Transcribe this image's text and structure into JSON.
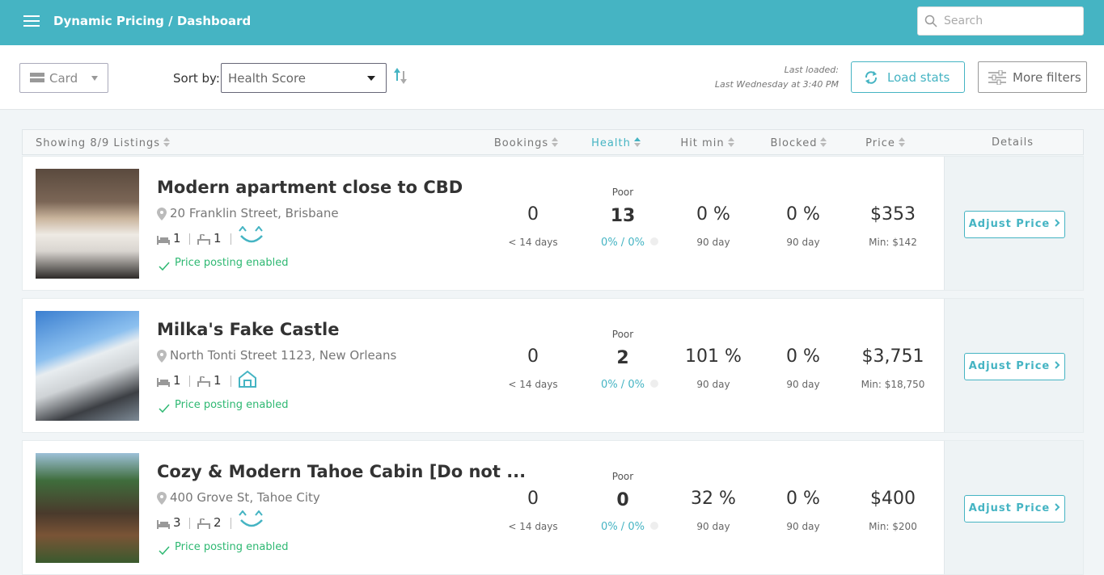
{
  "header": {
    "title": "Dynamic Pricing / Dashboard",
    "search_placeholder": "Search"
  },
  "toolbar": {
    "view": "Card",
    "sort_label": "Sort by:",
    "sort_value": "Health Score",
    "last_loaded_label": "Last loaded:",
    "last_loaded_value": "Last Wednesday at 3:40 PM",
    "load_stats": "Load stats",
    "more_filters": "More filters"
  },
  "table": {
    "columns": [
      "Showing 8/9 Listings",
      "Bookings",
      "Health",
      "Hit min",
      "Blocked",
      "Price",
      "Details"
    ],
    "rows": [
      {
        "title": "Modern apartment close to CBD",
        "address": "20 Franklin Street, Brisbane",
        "beds": "1",
        "baths": "1",
        "status": "Price posting enabled",
        "bookings": "0",
        "bookings_sub": "< 14 days",
        "health_label": "Poor",
        "health": "13",
        "health_sub": "0% / 0%",
        "hit_min": "0 %",
        "hit_min_sub": "90 day",
        "blocked": "0 %",
        "blocked_sub": "90 day",
        "price": "$353",
        "min_price": "Min: $142",
        "action": "Adjust Price"
      },
      {
        "title": "Milka's Fake Castle",
        "address": "North Tonti Street 1123, New Orleans",
        "beds": "1",
        "baths": "1",
        "status": "Price posting enabled",
        "bookings": "0",
        "bookings_sub": "< 14 days",
        "health_label": "Poor",
        "health": "2",
        "health_sub": "0% / 0%",
        "hit_min": "101 %",
        "hit_min_sub": "90 day",
        "blocked": "0 %",
        "blocked_sub": "90 day",
        "price": "$3,751",
        "min_price": "Min: $18,750",
        "action": "Adjust Price"
      },
      {
        "title": "Cozy & Modern Tahoe Cabin [Do not ...",
        "address": "400 Grove St, Tahoe City",
        "beds": "3",
        "baths": "2",
        "status": "Price posting enabled",
        "bookings": "0",
        "bookings_sub": "< 14 days",
        "health_label": "Poor",
        "health": "0",
        "health_sub": "0% / 0%",
        "hit_min": "32 %",
        "hit_min_sub": "90 day",
        "blocked": "0 %",
        "blocked_sub": "90 day",
        "price": "$400",
        "min_price": "Min: $200",
        "action": "Adjust Price"
      }
    ]
  }
}
